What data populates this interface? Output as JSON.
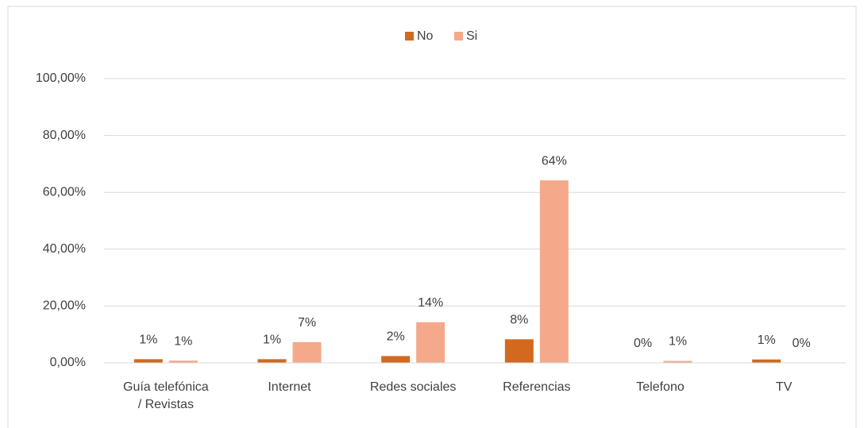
{
  "chart_data": {
    "type": "bar",
    "categories": [
      "Guía telefónica / Revistas",
      "Internet",
      "Redes sociales",
      "Referencias",
      "Telefono",
      "TV"
    ],
    "series": [
      {
        "name": "No",
        "color": "#d2691e",
        "values": [
          1.3,
          1.3,
          2.4,
          8.3,
          0,
          1.2
        ],
        "value_labels": [
          "1%",
          "1%",
          "2%",
          "8%",
          "0%",
          "1%"
        ]
      },
      {
        "name": "Si",
        "color": "#f4a98a",
        "values": [
          0.8,
          7.3,
          14.3,
          64.2,
          0.7,
          0
        ],
        "value_labels": [
          "1%",
          "7%",
          "14%",
          "64%",
          "1%",
          "0%"
        ]
      }
    ],
    "ylim": [
      0,
      100
    ],
    "yticks": [
      {
        "value": 0,
        "label": "0,00%"
      },
      {
        "value": 20,
        "label": "20,00%"
      },
      {
        "value": 40,
        "label": "40,00%"
      },
      {
        "value": 60,
        "label": "60,00%"
      },
      {
        "value": 80,
        "label": "80,00%"
      },
      {
        "value": 100,
        "label": "100,00%"
      }
    ],
    "grid": true,
    "legend": "top"
  }
}
